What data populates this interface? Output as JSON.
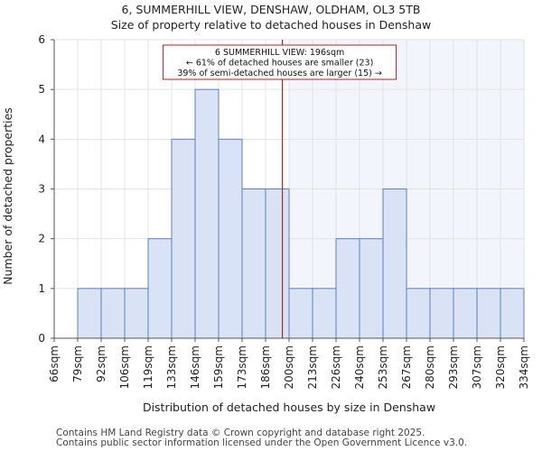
{
  "title_line1": "6, SUMMERHILL VIEW, DENSHAW, OLDHAM, OL3 5TB",
  "title_line2": "Size of property relative to detached houses in Denshaw",
  "footer_line1": "Contains HM Land Registry data © Crown copyright and database right 2025.",
  "footer_line2": "Contains public sector information licensed under the Open Government Licence v3.0.",
  "chart_data": {
    "type": "bar",
    "xlabel": "Distribution of detached houses by size in Denshaw",
    "ylabel": "Number of detached properties",
    "ylim": [
      0,
      6
    ],
    "yticks": [
      0,
      1,
      2,
      3,
      4,
      5,
      6
    ],
    "bin_edges": [
      "66sqm",
      "79sqm",
      "92sqm",
      "106sqm",
      "119sqm",
      "133sqm",
      "146sqm",
      "159sqm",
      "173sqm",
      "186sqm",
      "200sqm",
      "213sqm",
      "226sqm",
      "240sqm",
      "253sqm",
      "267sqm",
      "280sqm",
      "293sqm",
      "307sqm",
      "320sqm",
      "334sqm"
    ],
    "values": [
      0,
      1,
      1,
      1,
      2,
      4,
      5,
      4,
      3,
      3,
      1,
      1,
      2,
      2,
      3,
      1,
      1,
      1,
      1,
      1
    ],
    "marker_value_sqm": 196,
    "highlight_from_sqm": 200,
    "annotation_lines": [
      "6 SUMMERHILL VIEW: 196sqm",
      "← 61% of detached houses are smaller (23)",
      "39% of semi-detached houses are larger (15) →"
    ],
    "colors": {
      "bar_fill": "#dae3f5",
      "bar_stroke": "#5b7fc4",
      "highlight_band": "#f2f5fc",
      "marker_line": "#b22222",
      "grid": "#e3e3e3"
    },
    "grid": true
  }
}
